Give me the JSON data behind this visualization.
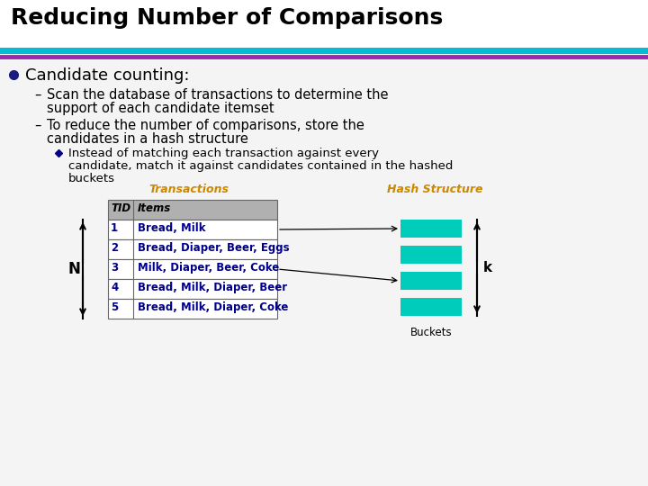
{
  "title": "Reducing Number of Comparisons",
  "title_fontsize": 18,
  "slide_bg": "#f4f4f4",
  "cyan_line_color": "#00bcd4",
  "purple_line_color": "#9c27b0",
  "bullet_text": "Candidate counting:",
  "sub_bullet1_line1": "Scan the database of transactions to determine the",
  "sub_bullet1_line2": "support of each candidate itemset",
  "sub_bullet2_line1": "To reduce the number of comparisons, store the",
  "sub_bullet2_line2": "candidates in a hash structure",
  "diamond_bullet_line1": "Instead of matching each transaction against every",
  "diamond_bullet_line2": "candidate, match it against candidates contained in the hashed",
  "diamond_bullet_line3": "buckets",
  "transactions_label": "Transactions",
  "transactions_label_color": "#cc8800",
  "hash_label": "Hash Structure",
  "hash_label_color": "#cc8800",
  "buckets_label": "Buckets",
  "table_header": [
    "TID",
    "Items"
  ],
  "table_rows": [
    [
      "1",
      "Bread, Milk"
    ],
    [
      "2",
      "Bread, Diaper, Beer, Eggs"
    ],
    [
      "3",
      "Milk, Diaper, Beer, Coke"
    ],
    [
      "4",
      "Bread, Milk, Diaper, Beer"
    ],
    [
      "5",
      "Bread, Milk, Diaper, Coke"
    ]
  ],
  "table_header_bg": "#b0b0b0",
  "table_row_bg": "#ffffff",
  "table_text_color": "#00008b",
  "hash_bucket_color": "#00ccbb",
  "N_label": "N",
  "k_label": "k"
}
